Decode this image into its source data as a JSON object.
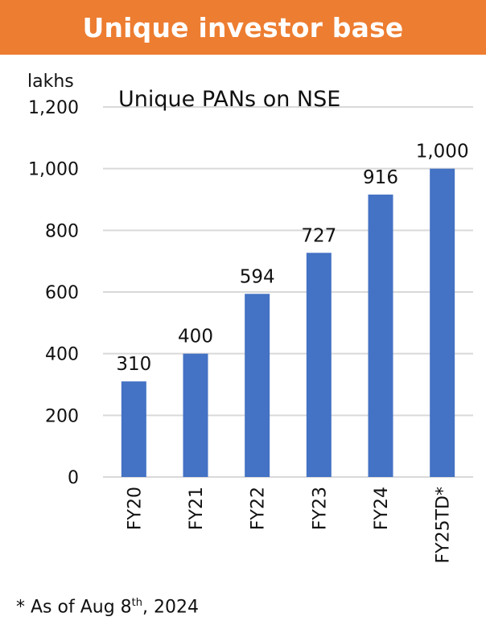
{
  "header": {
    "title": "Unique investor base"
  },
  "chart_data": {
    "type": "bar",
    "title": "Unique PANs on NSE",
    "unit_label": "lakhs",
    "categories": [
      "FY20",
      "FY21",
      "FY22",
      "FY23",
      "FY24",
      "FY25TD*"
    ],
    "values": [
      310,
      400,
      594,
      727,
      916,
      1000
    ],
    "data_labels": [
      "310",
      "400",
      "594",
      "727",
      "916",
      "1,000"
    ],
    "yticks": [
      "0",
      "200",
      "400",
      "600",
      "800",
      "1,000",
      "1,200"
    ],
    "ylim": [
      0,
      1200
    ],
    "grid": true,
    "bar_color": "#4472C4",
    "grid_color": "#D9D9D9"
  },
  "footnote": {
    "prefix": "* As of Aug 8",
    "sup": "th",
    "suffix": ", 2024"
  }
}
